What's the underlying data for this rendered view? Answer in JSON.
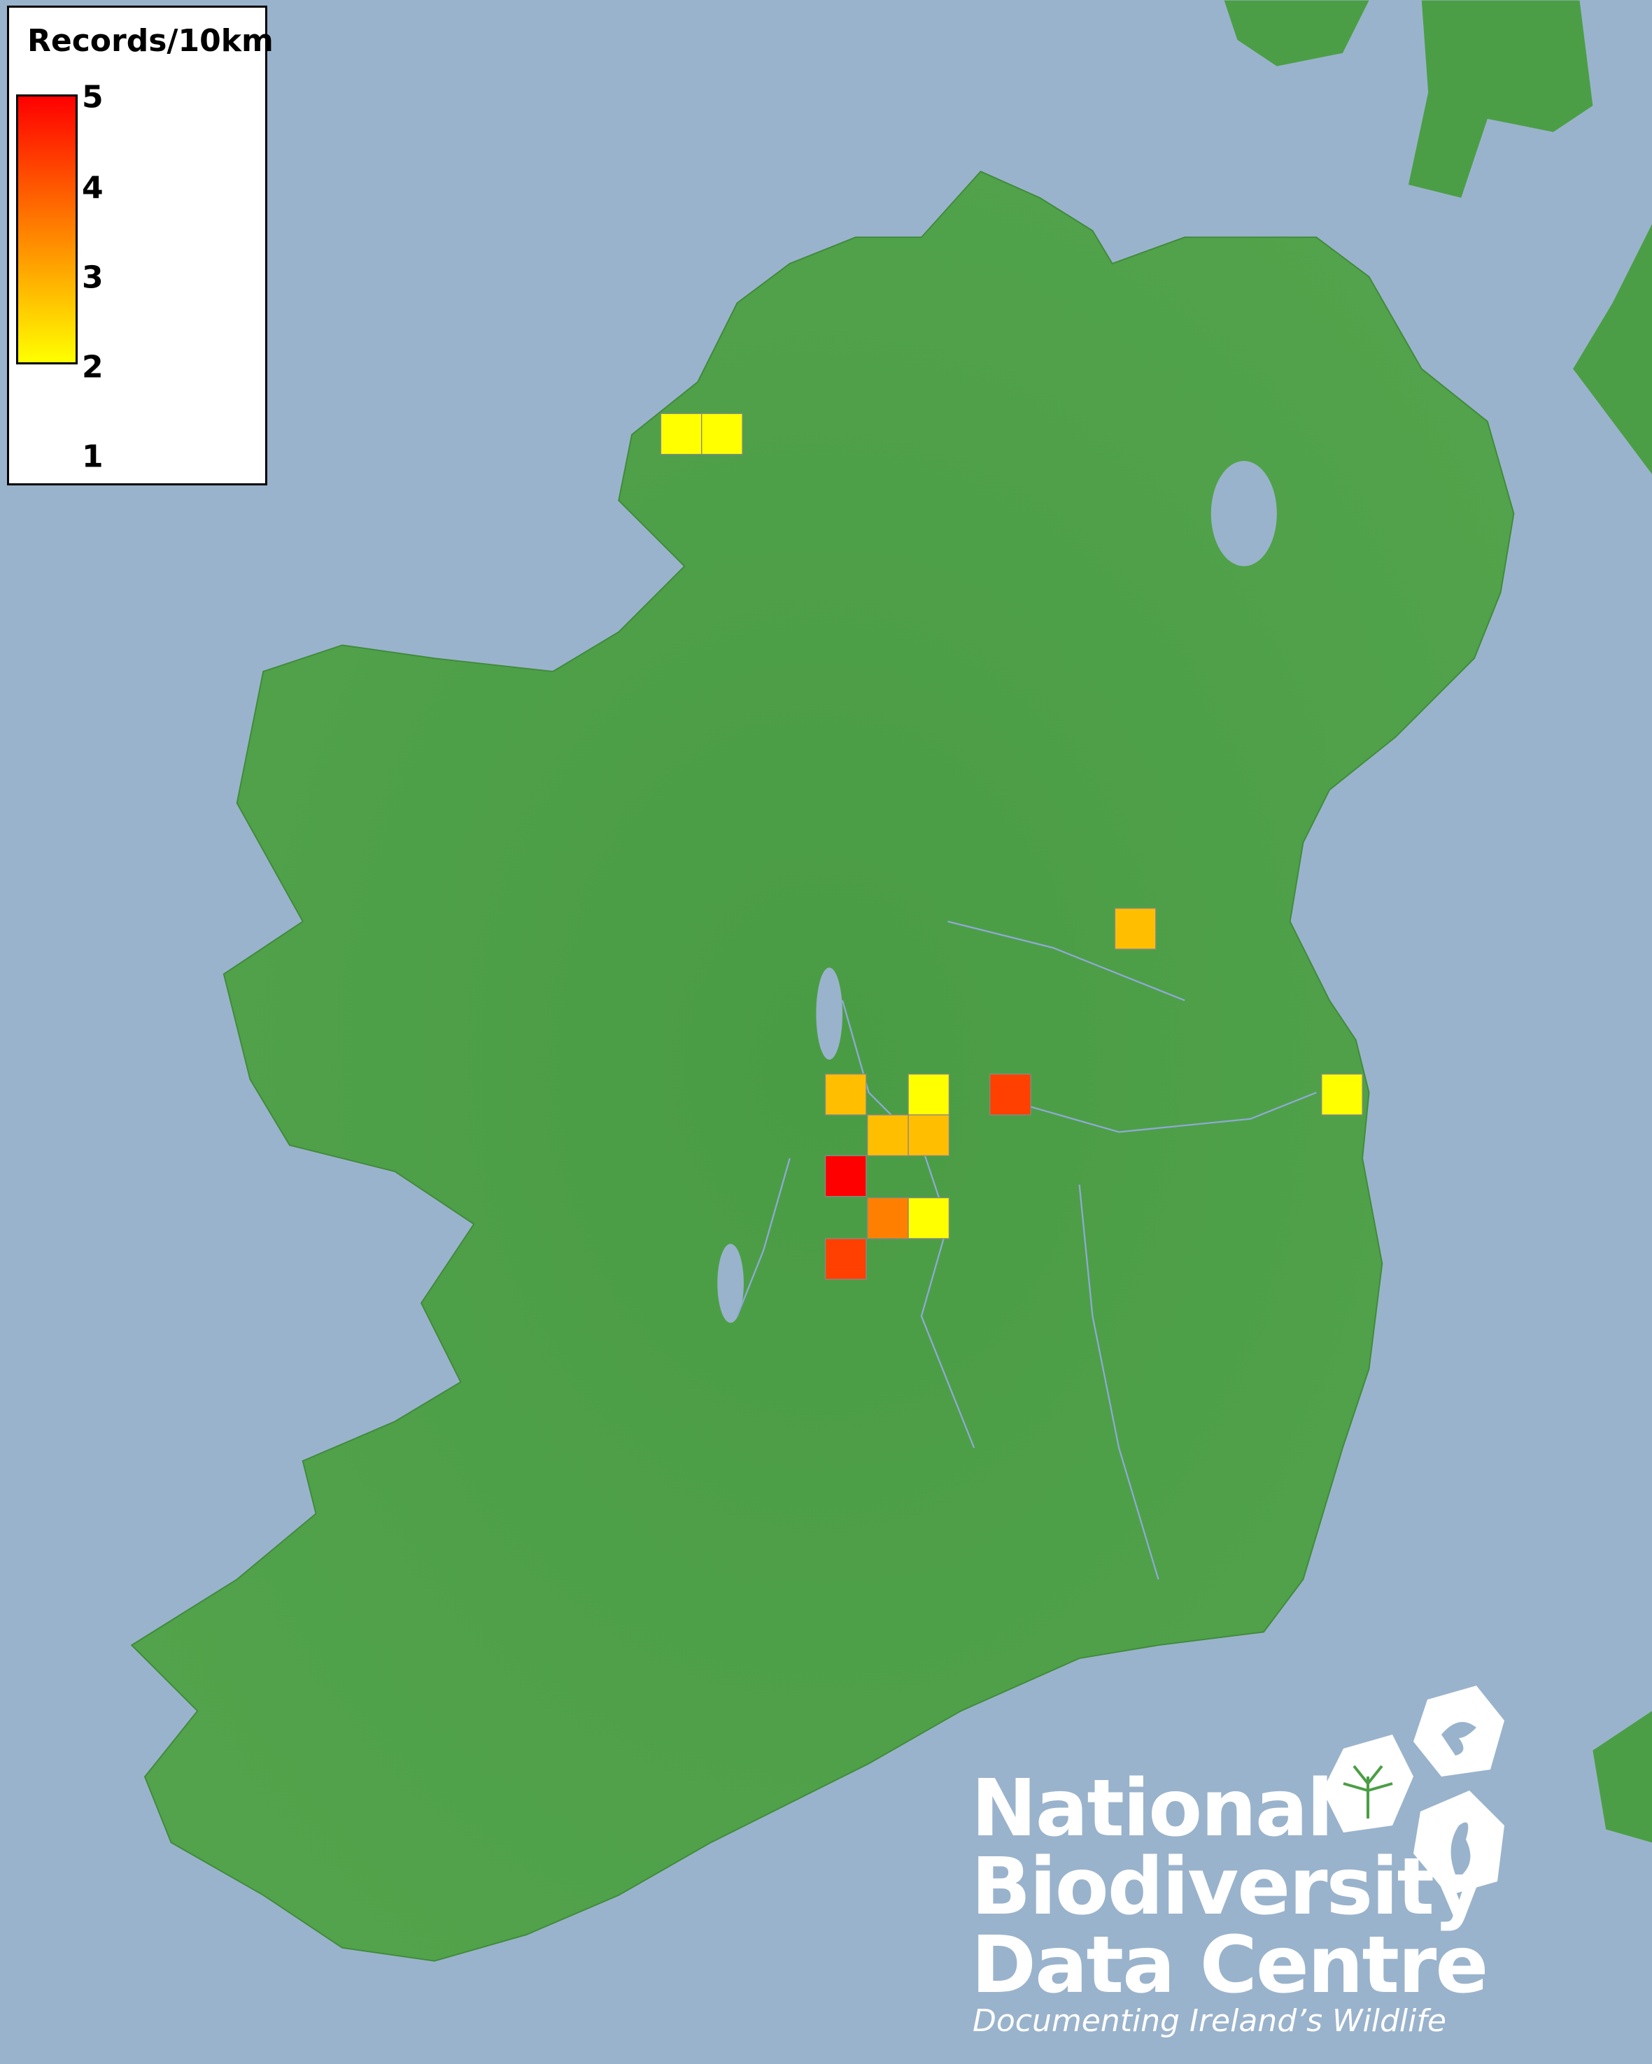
{
  "legend": {
    "title": "Records/10km",
    "ticks": [
      "5",
      "4",
      "3",
      "2",
      "1"
    ],
    "color_min": "#ffff00",
    "color_mid": "#ff8000",
    "color_max": "#ff0000"
  },
  "records": [
    {
      "value": 1,
      "color": "#ffff00"
    },
    {
      "value": 1,
      "color": "#ffff00"
    },
    {
      "value": 2,
      "color": "#ffbf00"
    },
    {
      "value": 2,
      "color": "#ffbf00"
    },
    {
      "value": 1,
      "color": "#ffff00"
    },
    {
      "value": 4,
      "color": "#ff4000"
    },
    {
      "value": 1,
      "color": "#ffff00"
    },
    {
      "value": 2,
      "color": "#ffbf00"
    },
    {
      "value": 2,
      "color": "#ffbf00"
    },
    {
      "value": 5,
      "color": "#ff0000"
    },
    {
      "value": 3,
      "color": "#ff8000"
    },
    {
      "value": 1,
      "color": "#ffff00"
    },
    {
      "value": 4,
      "color": "#ff4000"
    }
  ],
  "colors": {
    "sea": "#9ab3cc",
    "land": "#4b9e45",
    "rivers": "#8fa9d6"
  },
  "logo": {
    "line1": "National",
    "line2": "Biodiversity",
    "line3": "Data Centre",
    "tagline": "Documenting Ireland’s Wildlife"
  }
}
